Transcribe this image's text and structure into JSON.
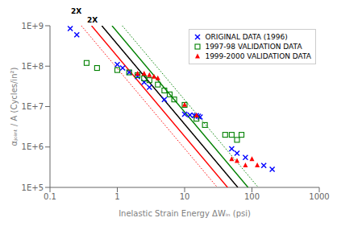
{
  "chart_data": {
    "type": "scatter",
    "x_label": "Inelastic Strain Energy ΔWᵢₙ (psi)",
    "y_label": "αⱼₒᵢₙₜ / A (Cycles/in²)",
    "log": true,
    "xlim": [
      0.1,
      1000
    ],
    "ylim": [
      100000,
      1000000000
    ],
    "xticks": [
      0.1,
      1,
      10,
      100,
      1000
    ],
    "yticks": [
      {
        "value": 100000,
        "label": "1E+5"
      },
      {
        "value": 1000000,
        "label": "1E+6"
      },
      {
        "value": 10000000,
        "label": "1E+7"
      },
      {
        "value": 100000000,
        "label": "1E+8"
      },
      {
        "value": 1000000000,
        "label": "1E+9"
      }
    ],
    "grid": false,
    "legend": "upper right",
    "annotations": [
      "2X",
      "2X"
    ],
    "series": [
      {
        "type": "line",
        "color": "green",
        "line_style": "solid",
        "x": [
          0.83515,
          87.492
        ],
        "values": [
          1000000000,
          100000
        ]
      },
      {
        "type": "line",
        "color": "green",
        "line_style": "dotted",
        "x": [
          1.18523,
          124.166
        ],
        "values": [
          1000000000,
          100000
        ]
      },
      {
        "type": "line",
        "color": "green",
        "line_style": "dotted",
        "x": [
          0.58848,
          61.64
        ],
        "values": [
          1000000000,
          100000
        ]
      },
      {
        "type": "line",
        "color": "red",
        "line_style": "solid",
        "x": [
          0.41466,
          43.441
        ],
        "values": [
          1000000000,
          100000
        ]
      },
      {
        "type": "line",
        "color": "red",
        "line_style": "dotted",
        "x": [
          0.58848,
          61.64
        ],
        "values": [
          1000000000,
          100000
        ]
      },
      {
        "type": "line",
        "color": "red",
        "line_style": "dotted",
        "x": [
          0.29219,
          30.61
        ],
        "values": [
          1000000000,
          100000
        ]
      },
      {
        "type": "line",
        "color": "black",
        "line_style": "solid",
        "x": [
          0.58848,
          61.64
        ],
        "values": [
          1000000000,
          100000
        ]
      },
      {
        "type": "scatter",
        "name": "ORIGINAL DATA (1996)",
        "color": "blue",
        "marker": "x",
        "x": [
          0.2,
          0.25,
          1.0,
          1.2,
          1.5,
          2.0,
          2.5,
          3.0,
          5.0,
          10.0,
          12.0,
          14.0,
          15.0,
          16.0,
          17.0,
          50.0,
          60.0,
          80.0,
          150.0,
          200.0
        ],
        "values": [
          850000000.0,
          600000000.0,
          110000000.0,
          90000000.0,
          70000000.0,
          55000000.0,
          40000000.0,
          30000000.0,
          15000000.0,
          6500000.0,
          6200000.0,
          6000000.0,
          6000000.0,
          5800000.0,
          5500000.0,
          900000.0,
          700000.0,
          550000.0,
          350000.0,
          280000.0
        ]
      },
      {
        "type": "scatter",
        "name": "1997-98 VALIDATION DATA",
        "color": "green",
        "marker": "square",
        "x": [
          0.35,
          0.5,
          1.0,
          1.5,
          2.0,
          2.5,
          3.0,
          4.0,
          5.0,
          6.0,
          7.0,
          10.0,
          15.0,
          20.0,
          40.0,
          50.0,
          60.0,
          70.0
        ],
        "values": [
          120000000.0,
          90000000.0,
          80000000.0,
          70000000.0,
          60000000.0,
          50000000.0,
          45000000.0,
          35000000.0,
          25000000.0,
          20000000.0,
          15000000.0,
          11000000.0,
          5000000.0,
          3500000.0,
          2000000.0,
          2000000.0,
          1500000.0,
          2000000.0
        ]
      },
      {
        "type": "scatter",
        "name": "1999-2000 VALIDATION DATA",
        "color": "red",
        "marker": "triangle",
        "x": [
          2.0,
          2.5,
          3.0,
          3.5,
          4.0,
          10.0,
          15.0,
          50.0,
          60.0,
          80.0,
          100.0,
          120.0
        ],
        "values": [
          65000000.0,
          65000000.0,
          60000000.0,
          55000000.0,
          50000000.0,
          11000000.0,
          6000000.0,
          500000.0,
          450000.0,
          350000.0,
          500000.0,
          350000.0
        ]
      }
    ]
  }
}
